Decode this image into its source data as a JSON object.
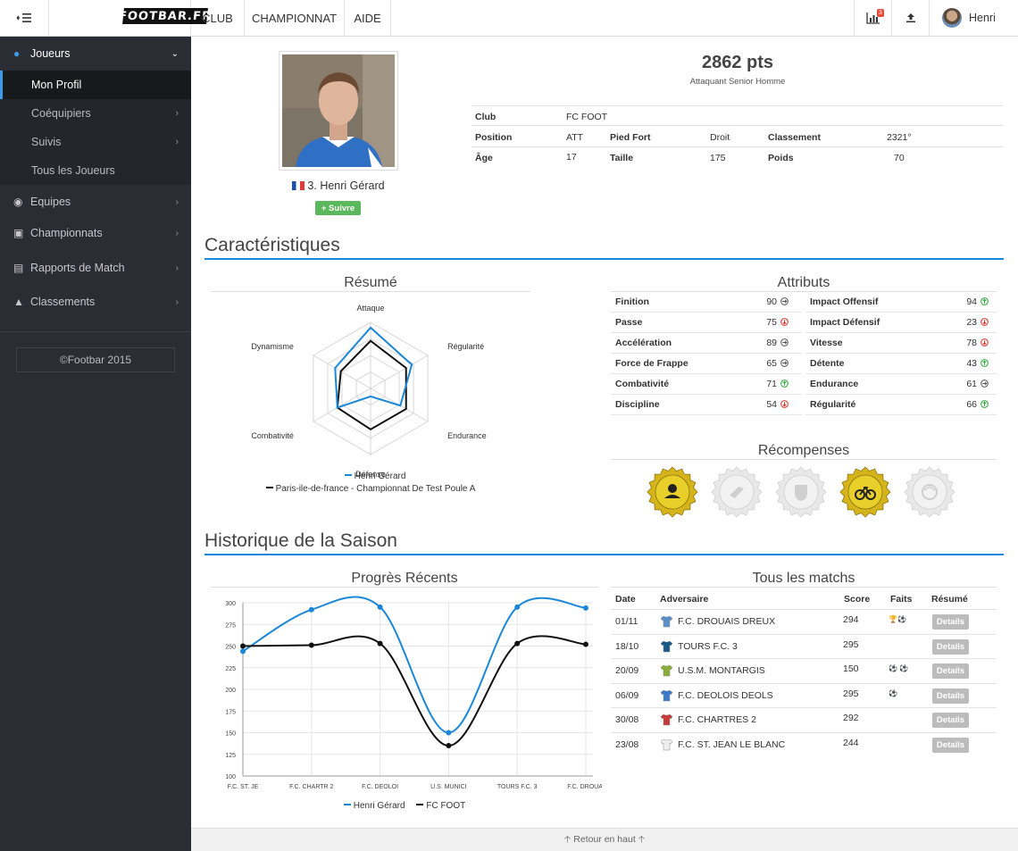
{
  "topbar": {
    "toggle_icon": "sidebar-toggle-icon",
    "logo": "FOOTBAR.FR",
    "nav": [
      "CLUB",
      "CHAMPIONNAT",
      "AIDE"
    ],
    "notif_count": "3",
    "user_name": "Henri"
  },
  "sidebar": {
    "joueurs": "Joueurs",
    "sub": [
      "Mon Profil",
      "Coéquipiers",
      "Suivis",
      "Tous les Joueurs"
    ],
    "items": [
      "Equipes",
      "Championnats",
      "Rapports de Match",
      "Classements"
    ],
    "copyright": "©Footbar 2015"
  },
  "profile": {
    "points": "2862 pts",
    "category": "Attaquant Senior Homme",
    "name": "3. Henri Gérard",
    "follow": "+ Suivre",
    "club_label": "Club",
    "club": "FC FOOT",
    "position_label": "Position",
    "position": "ATT",
    "foot_label": "Pied Fort",
    "foot": "Droit",
    "rank_label": "Classement",
    "rank": "2321°",
    "age_label": "Âge",
    "age": "17",
    "height_label": "Taille",
    "height": "175",
    "weight_label": "Poids",
    "weight": "70"
  },
  "sections": {
    "characteristics": "Caractéristiques",
    "summary": "Résumé",
    "attributes": "Attributs",
    "rewards": "Récompenses",
    "history": "Historique de la Saison",
    "progress": "Progrès Récents",
    "matches": "Tous les matchs"
  },
  "radar": {
    "axes": [
      "Attaque",
      "Régularité",
      "Endurance",
      "Défense",
      "Combativité",
      "Dynamisme"
    ],
    "legend": [
      "Henri Gérard",
      "Paris-ile-de-france - Championnat De Test Poule A"
    ],
    "series1": [
      0.92,
      0.72,
      0.52,
      0.12,
      0.58,
      0.62
    ],
    "series2": [
      0.72,
      0.62,
      0.62,
      0.62,
      0.58,
      0.52
    ],
    "colors": [
      "#1b87d8",
      "#111111"
    ]
  },
  "attributes": {
    "left": [
      {
        "name": "Finition",
        "value": "90",
        "trend": "neutral"
      },
      {
        "name": "Passe",
        "value": "75",
        "trend": "down"
      },
      {
        "name": "Accélération",
        "value": "89",
        "trend": "neutral"
      },
      {
        "name": "Force de Frappe",
        "value": "65",
        "trend": "neutral"
      },
      {
        "name": "Combativité",
        "value": "71",
        "trend": "up"
      },
      {
        "name": "Discipline",
        "value": "54",
        "trend": "down"
      }
    ],
    "right": [
      {
        "name": "Impact Offensif",
        "value": "94",
        "trend": "up"
      },
      {
        "name": "Impact Défensif",
        "value": "23",
        "trend": "down"
      },
      {
        "name": "Vitesse",
        "value": "78",
        "trend": "down"
      },
      {
        "name": "Détente",
        "value": "43",
        "trend": "up"
      },
      {
        "name": "Endurance",
        "value": "61",
        "trend": "neutral"
      },
      {
        "name": "Régularité",
        "value": "66",
        "trend": "up"
      }
    ],
    "trend_colors": {
      "up": "#2ea53a",
      "down": "#d9342b",
      "neutral": "#555555"
    }
  },
  "rewards": [
    {
      "icon": "avatar-badge-icon",
      "earned": true
    },
    {
      "icon": "boot-badge-icon",
      "earned": false
    },
    {
      "icon": "shield-badge-icon",
      "earned": false
    },
    {
      "icon": "bike-badge-icon",
      "earned": true
    },
    {
      "icon": "ball-badge-icon",
      "earned": false
    }
  ],
  "chart_data": {
    "type": "line",
    "categories": [
      "F.C. ST. JE",
      "F.C. CHARTR 2",
      "F.C. DEOLOI",
      "U.S. MUNICI",
      "TOURS F.C. 3",
      "F.C. DROUAI"
    ],
    "yticks": [
      "100",
      "125",
      "150",
      "175",
      "200",
      "225",
      "250",
      "275",
      "300"
    ],
    "ylim": [
      100,
      300
    ],
    "series": [
      {
        "name": "Henri Gérard",
        "values": [
          244,
          292,
          295,
          150,
          295,
          294
        ],
        "color": "#1b87d8"
      },
      {
        "name": "FC FOOT",
        "values": [
          250,
          251,
          253,
          135,
          253,
          252
        ],
        "color": "#111111"
      }
    ],
    "legend": "bottom"
  },
  "matches": {
    "headers": [
      "Date",
      "Adversaire",
      "Score",
      "Faits",
      "Résumé"
    ],
    "details_label": "Details",
    "rows": [
      {
        "date": "01/11",
        "team": "F.C. DROUAIS DREUX",
        "score": "294",
        "facts": "🏆⚽",
        "shirt": "#5a8fc8"
      },
      {
        "date": "18/10",
        "team": "TOURS F.C. 3",
        "score": "295",
        "facts": "",
        "shirt": "#1a5a8a"
      },
      {
        "date": "20/09",
        "team": "U.S.M. MONTARGIS",
        "score": "150",
        "facts": "⚽ ⚽",
        "shirt": "#8aae3a"
      },
      {
        "date": "06/09",
        "team": "F.C. DEOLOIS DEOLS",
        "score": "295",
        "facts": "⚽",
        "shirt": "#3a7ac8"
      },
      {
        "date": "30/08",
        "team": "F.C. CHARTRES 2",
        "score": "292",
        "facts": "",
        "shirt": "#c83a3a"
      },
      {
        "date": "23/08",
        "team": "F.C. ST. JEAN LE BLANC",
        "score": "244",
        "facts": "",
        "shirt": "#eeeeee"
      }
    ]
  },
  "footer": {
    "back_to_top": "Retour en haut"
  }
}
